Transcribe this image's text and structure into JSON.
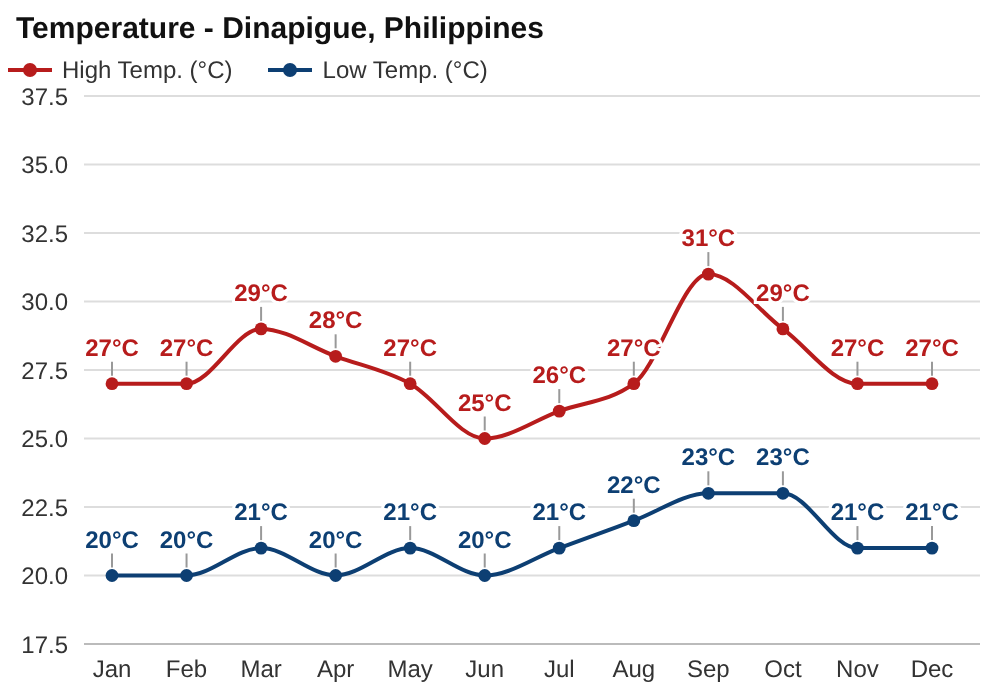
{
  "chart_data": {
    "type": "line",
    "title": "Temperature - Dinapigue, Philippines",
    "categories": [
      "Jan",
      "Feb",
      "Mar",
      "Apr",
      "May",
      "Jun",
      "Jul",
      "Aug",
      "Sep",
      "Oct",
      "Nov",
      "Dec"
    ],
    "series": [
      {
        "name": "High Temp. (°C)",
        "color": "#b71c1c",
        "values": [
          27,
          27,
          29,
          28,
          27,
          25,
          26,
          27,
          31,
          29,
          27,
          27
        ],
        "value_labels": [
          "27°C",
          "27°C",
          "29°C",
          "28°C",
          "27°C",
          "25°C",
          "26°C",
          "27°C",
          "31°C",
          "29°C",
          "27°C",
          "27°C"
        ]
      },
      {
        "name": "Low Temp. (°C)",
        "color": "#0d3f73",
        "values": [
          20,
          20,
          21,
          20,
          21,
          20,
          21,
          22,
          23,
          23,
          21,
          21
        ],
        "value_labels": [
          "20°C",
          "20°C",
          "21°C",
          "20°C",
          "21°C",
          "20°C",
          "21°C",
          "22°C",
          "23°C",
          "23°C",
          "21°C",
          "21°C"
        ]
      }
    ],
    "ylim": [
      17.5,
      37.5
    ],
    "yticks": [
      17.5,
      {
        "value": 20,
        "label": "20.0"
      },
      22.5,
      {
        "value": 25,
        "label": "25.0"
      },
      27.5,
      {
        "value": 30,
        "label": "30.0"
      },
      32.5,
      {
        "value": 35,
        "label": "35.0"
      },
      37.5
    ],
    "grid": "y",
    "legend": "top left",
    "marker": "circle",
    "line_style": "solid"
  }
}
